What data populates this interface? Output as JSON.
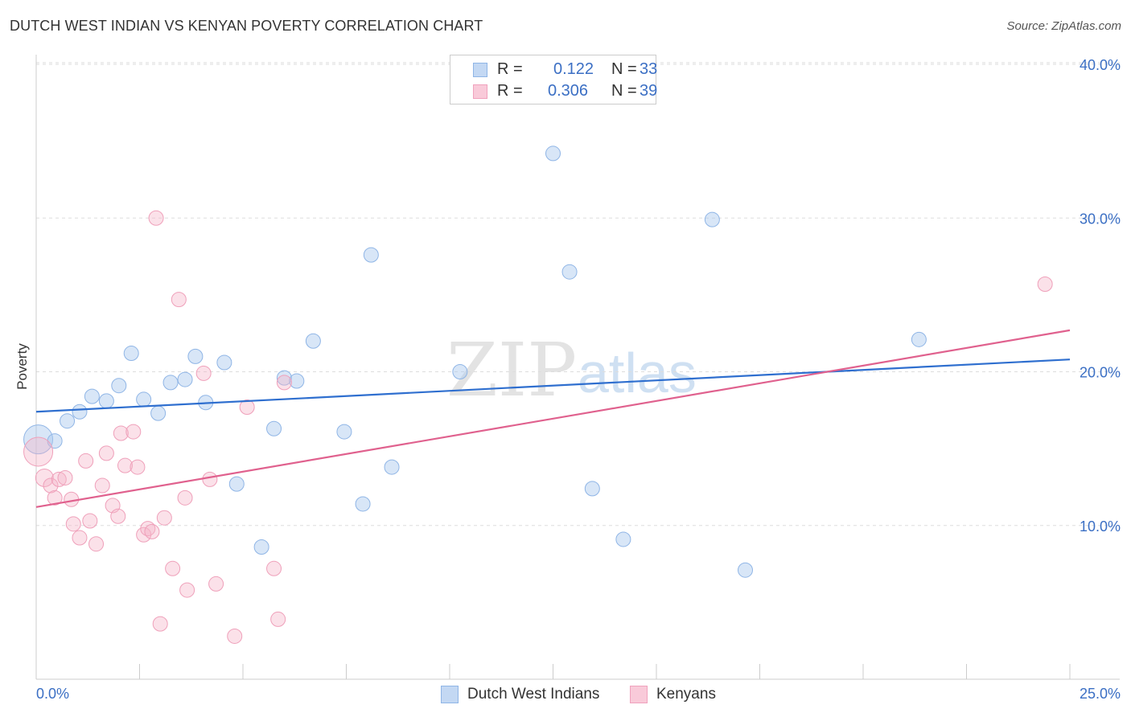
{
  "title": "DUTCH WEST INDIAN VS KENYAN POVERTY CORRELATION CHART",
  "source": "Source: ZipAtlas.com",
  "watermark": {
    "zip": "ZIP",
    "atlas": "atlas"
  },
  "legend": {
    "series1": {
      "r_label": "R =",
      "r_value": "0.122",
      "n_label": "N =",
      "n_value": "33"
    },
    "series2": {
      "r_label": "R =",
      "r_value": "0.306",
      "n_label": "N =",
      "n_value": "39"
    }
  },
  "chart_data": {
    "type": "scatter",
    "title": "DUTCH WEST INDIAN VS KENYAN POVERTY CORRELATION CHART",
    "xlabel": "",
    "ylabel": "Poverty",
    "xlim": [
      0,
      25
    ],
    "ylim": [
      0,
      40
    ],
    "x_tick_labels": [
      "0.0%",
      "25.0%"
    ],
    "y_ticks": [
      10,
      20,
      30,
      40
    ],
    "y_tick_labels": [
      "10.0%",
      "20.0%",
      "30.0%",
      "40.0%"
    ],
    "grid": true,
    "colors": {
      "series1": "#a8c8ee",
      "series1_line": "#2f6fcf",
      "series2": "#f5b3c8",
      "series2_line": "#e0618e",
      "tick_text": "#3b6fc4"
    },
    "series": [
      {
        "name": "Dutch West Indians",
        "trend": {
          "x": [
            0,
            25
          ],
          "y": [
            17.4,
            20.8
          ]
        },
        "points": [
          [
            0.05,
            15.6,
            18
          ],
          [
            0.45,
            15.5,
            9
          ],
          [
            0.75,
            16.8,
            9
          ],
          [
            1.05,
            17.4,
            9
          ],
          [
            1.35,
            18.4,
            9
          ],
          [
            1.7,
            18.1,
            9
          ],
          [
            2.0,
            19.1,
            9
          ],
          [
            2.3,
            21.2,
            9
          ],
          [
            2.6,
            18.2,
            9
          ],
          [
            2.95,
            17.3,
            9
          ],
          [
            3.25,
            19.3,
            9
          ],
          [
            3.6,
            19.5,
            9
          ],
          [
            3.85,
            21.0,
            9
          ],
          [
            4.1,
            18.0,
            9
          ],
          [
            4.55,
            20.6,
            9
          ],
          [
            4.85,
            12.7,
            9
          ],
          [
            5.45,
            8.6,
            9
          ],
          [
            5.75,
            16.3,
            9
          ],
          [
            6.0,
            19.6,
            9
          ],
          [
            6.3,
            19.4,
            9
          ],
          [
            6.7,
            22.0,
            9
          ],
          [
            7.45,
            16.1,
            9
          ],
          [
            7.9,
            11.4,
            9
          ],
          [
            8.1,
            27.6,
            9
          ],
          [
            8.6,
            13.8,
            9
          ],
          [
            10.25,
            20.0,
            9
          ],
          [
            12.5,
            34.2,
            9
          ],
          [
            12.9,
            26.5,
            9
          ],
          [
            13.45,
            12.4,
            9
          ],
          [
            14.2,
            9.1,
            9
          ],
          [
            16.35,
            29.9,
            9
          ],
          [
            17.15,
            7.1,
            9
          ],
          [
            21.35,
            22.1,
            9
          ]
        ]
      },
      {
        "name": "Kenyans",
        "trend": {
          "x": [
            0,
            25
          ],
          "y": [
            11.2,
            22.7
          ]
        },
        "points": [
          [
            0.05,
            14.8,
            18
          ],
          [
            0.2,
            13.1,
            11
          ],
          [
            0.35,
            12.6,
            9
          ],
          [
            0.45,
            11.8,
            9
          ],
          [
            0.55,
            13.0,
            9
          ],
          [
            0.7,
            13.1,
            9
          ],
          [
            0.85,
            11.7,
            9
          ],
          [
            0.9,
            10.1,
            9
          ],
          [
            1.05,
            9.2,
            9
          ],
          [
            1.2,
            14.2,
            9
          ],
          [
            1.3,
            10.3,
            9
          ],
          [
            1.45,
            8.8,
            9
          ],
          [
            1.6,
            12.6,
            9
          ],
          [
            1.7,
            14.7,
            9
          ],
          [
            1.85,
            11.3,
            9
          ],
          [
            1.98,
            10.6,
            9
          ],
          [
            2.05,
            16.0,
            9
          ],
          [
            2.15,
            13.9,
            9
          ],
          [
            2.35,
            16.1,
            9
          ],
          [
            2.45,
            13.8,
            9
          ],
          [
            2.6,
            9.4,
            9
          ],
          [
            2.7,
            9.8,
            9
          ],
          [
            2.8,
            9.6,
            9
          ],
          [
            2.9,
            30.0,
            9
          ],
          [
            3.0,
            3.6,
            9
          ],
          [
            3.1,
            10.5,
            9
          ],
          [
            3.3,
            7.2,
            9
          ],
          [
            3.45,
            24.7,
            9
          ],
          [
            3.6,
            11.8,
            9
          ],
          [
            3.65,
            5.8,
            9
          ],
          [
            4.05,
            19.9,
            9
          ],
          [
            4.2,
            13.0,
            9
          ],
          [
            4.35,
            6.2,
            9
          ],
          [
            4.8,
            2.8,
            9
          ],
          [
            5.1,
            17.7,
            9
          ],
          [
            5.75,
            7.2,
            9
          ],
          [
            5.85,
            3.9,
            9
          ],
          [
            6.0,
            19.3,
            9
          ],
          [
            24.4,
            25.7,
            9
          ]
        ]
      }
    ]
  },
  "bottom_legend": {
    "series1": "Dutch West Indians",
    "series2": "Kenyans"
  }
}
